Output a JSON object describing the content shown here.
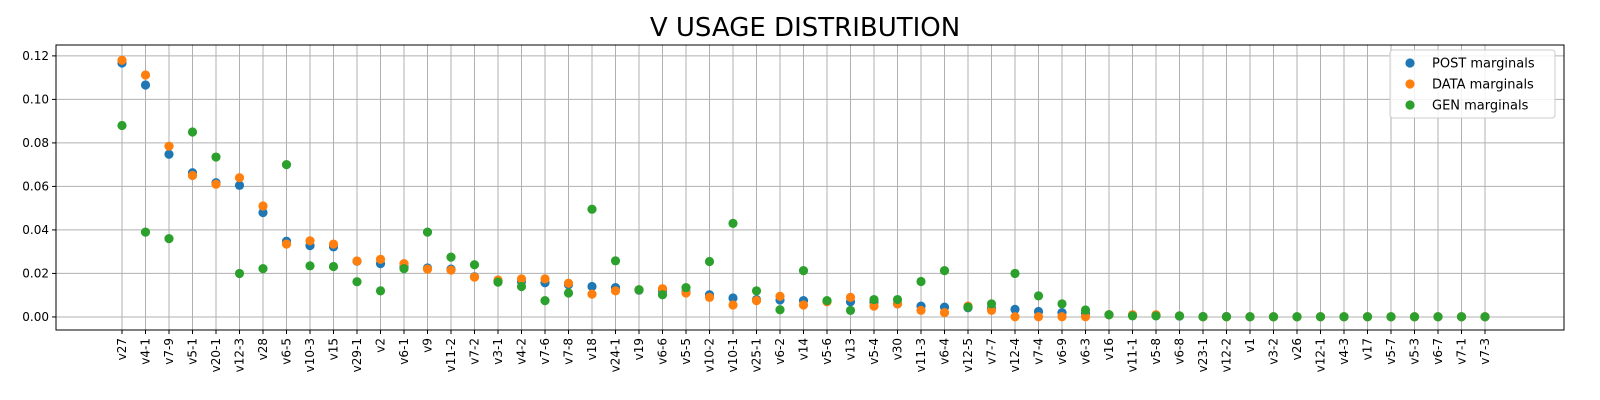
{
  "chart_data": {
    "type": "scatter",
    "title": "V USAGE DISTRIBUTION",
    "xlabel": "",
    "ylabel": "",
    "ylim": [
      -0.006,
      0.125
    ],
    "yticks": [
      "0.00",
      "0.02",
      "0.04",
      "0.06",
      "0.08",
      "0.10",
      "0.12"
    ],
    "grid": true,
    "legend_position": "top-right",
    "categories": [
      "v27",
      "v4-1",
      "v7-9",
      "v5-1",
      "v20-1",
      "v12-3",
      "v28",
      "v6-5",
      "v10-3",
      "v15",
      "v29-1",
      "v2",
      "v6-1",
      "v9",
      "v11-2",
      "v7-2",
      "v3-1",
      "v4-2",
      "v7-6",
      "v7-8",
      "v18",
      "v24-1",
      "v19",
      "v6-6",
      "v5-5",
      "v10-2",
      "v10-1",
      "v25-1",
      "v6-2",
      "v14",
      "v5-6",
      "v13",
      "v5-4",
      "v30",
      "v11-3",
      "v6-4",
      "v12-5",
      "v7-7",
      "v12-4",
      "v7-4",
      "v6-9",
      "v6-3",
      "v16",
      "v11-1",
      "v5-8",
      "v6-8",
      "v23-1",
      "v12-2",
      "v1",
      "v3-2",
      "v26",
      "v12-1",
      "v4-3",
      "v17",
      "v5-7",
      "v5-3",
      "v6-7",
      "v7-1",
      "v7-3"
    ],
    "series": [
      {
        "name": "POST marginals",
        "color": "#1f77b4",
        "values": [
          0.1167,
          0.1066,
          0.0748,
          0.0663,
          0.0617,
          0.0605,
          0.048,
          0.0348,
          0.0328,
          0.0322,
          0.0256,
          0.0245,
          0.0232,
          0.0225,
          0.022,
          0.0185,
          0.0167,
          0.0163,
          0.0157,
          0.0148,
          0.014,
          0.0135,
          0.0123,
          0.0118,
          0.0115,
          0.0102,
          0.0087,
          0.008,
          0.0078,
          0.0075,
          0.0072,
          0.007,
          0.0068,
          0.006,
          0.005,
          0.0045,
          0.0042,
          0.004,
          0.0035,
          0.0025,
          0.002,
          0.0015,
          0.001,
          0.0008,
          0.0006,
          0.0004,
          0.0002,
          0.0002,
          0.0001,
          0.0001,
          0.0001,
          0.0001,
          0.0001,
          0.0001,
          0.0001,
          0.0001,
          0.0001,
          0.0001,
          0.0001
        ]
      },
      {
        "name": "DATA marginals",
        "color": "#ff7f0e",
        "values": [
          0.118,
          0.1112,
          0.0785,
          0.065,
          0.061,
          0.064,
          0.051,
          0.0335,
          0.035,
          0.0335,
          0.0257,
          0.0265,
          0.0245,
          0.022,
          0.0215,
          0.0183,
          0.017,
          0.0175,
          0.0175,
          0.0155,
          0.0105,
          0.012,
          0.0125,
          0.013,
          0.011,
          0.009,
          0.0055,
          0.0075,
          0.0095,
          0.0055,
          0.007,
          0.009,
          0.005,
          0.006,
          0.003,
          0.002,
          0.005,
          0.003,
          0.0001,
          0.0001,
          0.0001,
          0.0001,
          0.001,
          0.001,
          0.001,
          0.0005,
          0.0001,
          0.0001,
          0.0001,
          0.0001,
          0.0001,
          0.0001,
          0.0001,
          0.0001,
          0.0001,
          0.0001,
          0.0001,
          0.0001,
          0.0001
        ]
      },
      {
        "name": "GEN marginals",
        "color": "#2ca02c",
        "values": [
          0.088,
          0.039,
          0.036,
          0.085,
          0.0735,
          0.02,
          0.0222,
          0.07,
          0.0235,
          0.0232,
          0.0162,
          0.012,
          0.0222,
          0.039,
          0.0275,
          0.024,
          0.016,
          0.014,
          0.0075,
          0.011,
          0.0495,
          0.0258,
          0.0125,
          0.0102,
          0.0135,
          0.0255,
          0.043,
          0.012,
          0.0033,
          0.0213,
          0.0075,
          0.003,
          0.008,
          0.008,
          0.0163,
          0.0213,
          0.0045,
          0.006,
          0.02,
          0.0097,
          0.006,
          0.0032,
          0.001,
          0.0005,
          0.0005,
          0.0005,
          0.0001,
          0.0001,
          0.0001,
          0.0001,
          0.0001,
          0.0001,
          0.0001,
          0.0001,
          0.0001,
          0.0001,
          0.0001,
          0.0001,
          0.0001
        ]
      }
    ]
  }
}
